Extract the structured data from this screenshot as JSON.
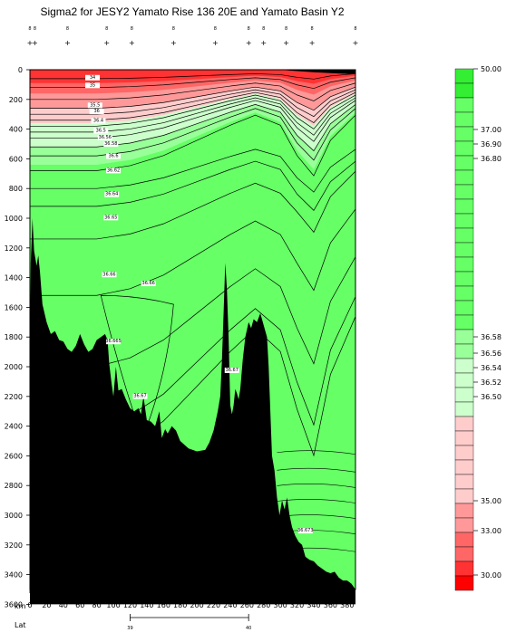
{
  "chart_data": {
    "type": "contour-section",
    "title": "Sigma2 for JESY2 Yamato Rise 136 20E and Yamato Basin Y2",
    "x_axis_name": "km",
    "lat_axis_name": "Lat",
    "xlim": [
      0,
      390
    ],
    "ylim": [
      0,
      3500
    ],
    "x_ticks": [
      0,
      20,
      40,
      60,
      80,
      100,
      120,
      140,
      160,
      180,
      200,
      220,
      240,
      260,
      280,
      300,
      320,
      340,
      360,
      380
    ],
    "y_ticks": [
      0,
      200,
      400,
      600,
      800,
      1000,
      1200,
      1400,
      1600,
      1800,
      2000,
      2200,
      2400,
      2600,
      2800,
      3000,
      3200,
      3400,
      3600
    ],
    "lat_ticks": [
      {
        "km": 120,
        "label": "39"
      },
      {
        "km": 262,
        "label": "40"
      }
    ],
    "station_km": [
      0,
      6,
      45,
      92,
      122,
      172,
      222,
      262,
      280,
      307,
      338,
      390
    ],
    "station_labels": [
      "8",
      "8",
      "8",
      "8",
      "8",
      "8",
      "8",
      "8",
      "8",
      "8",
      "8",
      "8"
    ],
    "contour_labels": [
      {
        "text": "34",
        "km": 75,
        "depth": 80
      },
      {
        "text": "35",
        "km": 75,
        "depth": 150
      },
      {
        "text": "35.5",
        "km": 78,
        "depth": 330
      },
      {
        "text": "36",
        "km": 80,
        "depth": 385
      },
      {
        "text": "36.4",
        "km": 82,
        "depth": 470
      },
      {
        "text": "36.5",
        "km": 85,
        "depth": 560
      },
      {
        "text": "36.56",
        "km": 90,
        "depth": 620
      },
      {
        "text": "36.58",
        "km": 97,
        "depth": 680
      },
      {
        "text": "36.6",
        "km": 100,
        "depth": 790
      },
      {
        "text": "36.62",
        "km": 100,
        "depth": 920
      },
      {
        "text": "36.64",
        "km": 98,
        "depth": 1135
      },
      {
        "text": "36.65",
        "km": 97,
        "depth": 1345
      },
      {
        "text": "36.66",
        "km": 95,
        "depth": 1860
      },
      {
        "text": "36.66",
        "km": 142,
        "depth": 1940
      },
      {
        "text": "36.665",
        "km": 100,
        "depth": 2465
      },
      {
        "text": "36.67",
        "km": 132,
        "depth": 2960
      },
      {
        "text": "36.67",
        "km": 242,
        "depth": 2725
      },
      {
        "text": "36.673",
        "km": 330,
        "depth": 4175
      }
    ],
    "colorbar": {
      "labels": [
        "50.00",
        "37.00",
        "36.90",
        "36.80",
        "36.58",
        "36.56",
        "36.54",
        "36.52",
        "36.50",
        "35.00",
        "33.00",
        "30.00"
      ],
      "colors": {
        "green_dark": "#33ee33",
        "green": "#66ff66",
        "green_light": "#99ff99",
        "green_pale": "#ccffcc",
        "pink_pale": "#ffcccc",
        "pink": "#ff9999",
        "red_mid": "#ff6666",
        "red": "#ff3333",
        "red_bright": "#ff0000"
      }
    }
  }
}
